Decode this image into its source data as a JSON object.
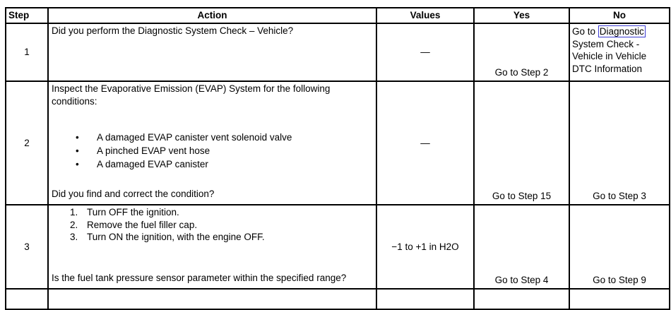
{
  "colors": {
    "background": "#ffffff",
    "border": "#000000",
    "text": "#000000",
    "link_box": "#3b3bd2"
  },
  "table": {
    "headers": {
      "step": "Step",
      "action": "Action",
      "values": "Values",
      "yes": "Yes",
      "no": "No"
    },
    "rows": [
      {
        "step": "1",
        "question": "Did you perform the Diagnostic System Check – Vehicle?",
        "values": "—",
        "yes": "Go to Step 2",
        "no_prefix": "Go to ",
        "no_link": "Diagnostic",
        "no_rest": " System Check - Vehicle in Vehicle DTC Information"
      },
      {
        "step": "2",
        "intro": "Inspect the Evaporative Emission (EVAP) System for the following conditions:",
        "bullets": [
          "A damaged EVAP canister vent solenoid valve",
          "A pinched EVAP vent hose",
          "A damaged EVAP canister"
        ],
        "bullet_glyph": "•",
        "question": "Did you find and correct the condition?",
        "values": "—",
        "yes": "Go to Step 15",
        "no": "Go to Step 3"
      },
      {
        "step": "3",
        "numbered": [
          "Turn OFF the ignition.",
          "Remove the fuel filler cap.",
          "Turn ON the ignition, with the engine OFF."
        ],
        "numbers": [
          "1.",
          "2.",
          "3."
        ],
        "question": "Is the fuel tank pressure sensor parameter within the specified range?",
        "values": "−1 to +1 in H2O",
        "yes": "Go to Step 4",
        "no": "Go to Step 9"
      }
    ]
  }
}
